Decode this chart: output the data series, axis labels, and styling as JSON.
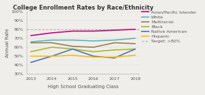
{
  "title": "College Enrollment Rates by Race/Ethnicity",
  "xlabel": "High School Graduating Class",
  "ylabel": "Annual Rate",
  "years": [
    2013,
    2014,
    2015,
    2016,
    2017,
    2018
  ],
  "series": {
    "Asian/Pacific Islander": {
      "values": [
        73,
        76,
        78,
        78,
        79,
        80
      ],
      "color": "#c4007a",
      "lw": 1.2
    },
    "White": {
      "values": [
        66,
        68,
        68,
        67,
        68,
        70
      ],
      "color": "#5ab5b5",
      "lw": 1.2
    },
    "Multiracial": {
      "values": [
        65,
        65,
        61,
        60,
        65,
        64
      ],
      "color": "#9b7b4a",
      "lw": 1.2
    },
    "Black": {
      "values": [
        55,
        60,
        58,
        55,
        57,
        58
      ],
      "color": "#a8b820",
      "lw": 1.2
    },
    "Native American": {
      "values": [
        43,
        50,
        58,
        50,
        48,
        58
      ],
      "color": "#4472c4",
      "lw": 1.2
    },
    "Hispanic": {
      "values": [
        50,
        50,
        51,
        49,
        49,
        51
      ],
      "color": "#f5c000",
      "lw": 1.2
    }
  },
  "target_value": 80,
  "target_label": "Target: >80%",
  "ylim": [
    30,
    100
  ],
  "yticks": [
    30,
    40,
    50,
    60,
    70,
    80,
    90,
    100
  ],
  "bg_color": "#f0eeea",
  "title_fontsize": 6.0,
  "axis_label_fontsize": 5.0,
  "tick_fontsize": 4.5,
  "legend_fontsize": 4.5
}
